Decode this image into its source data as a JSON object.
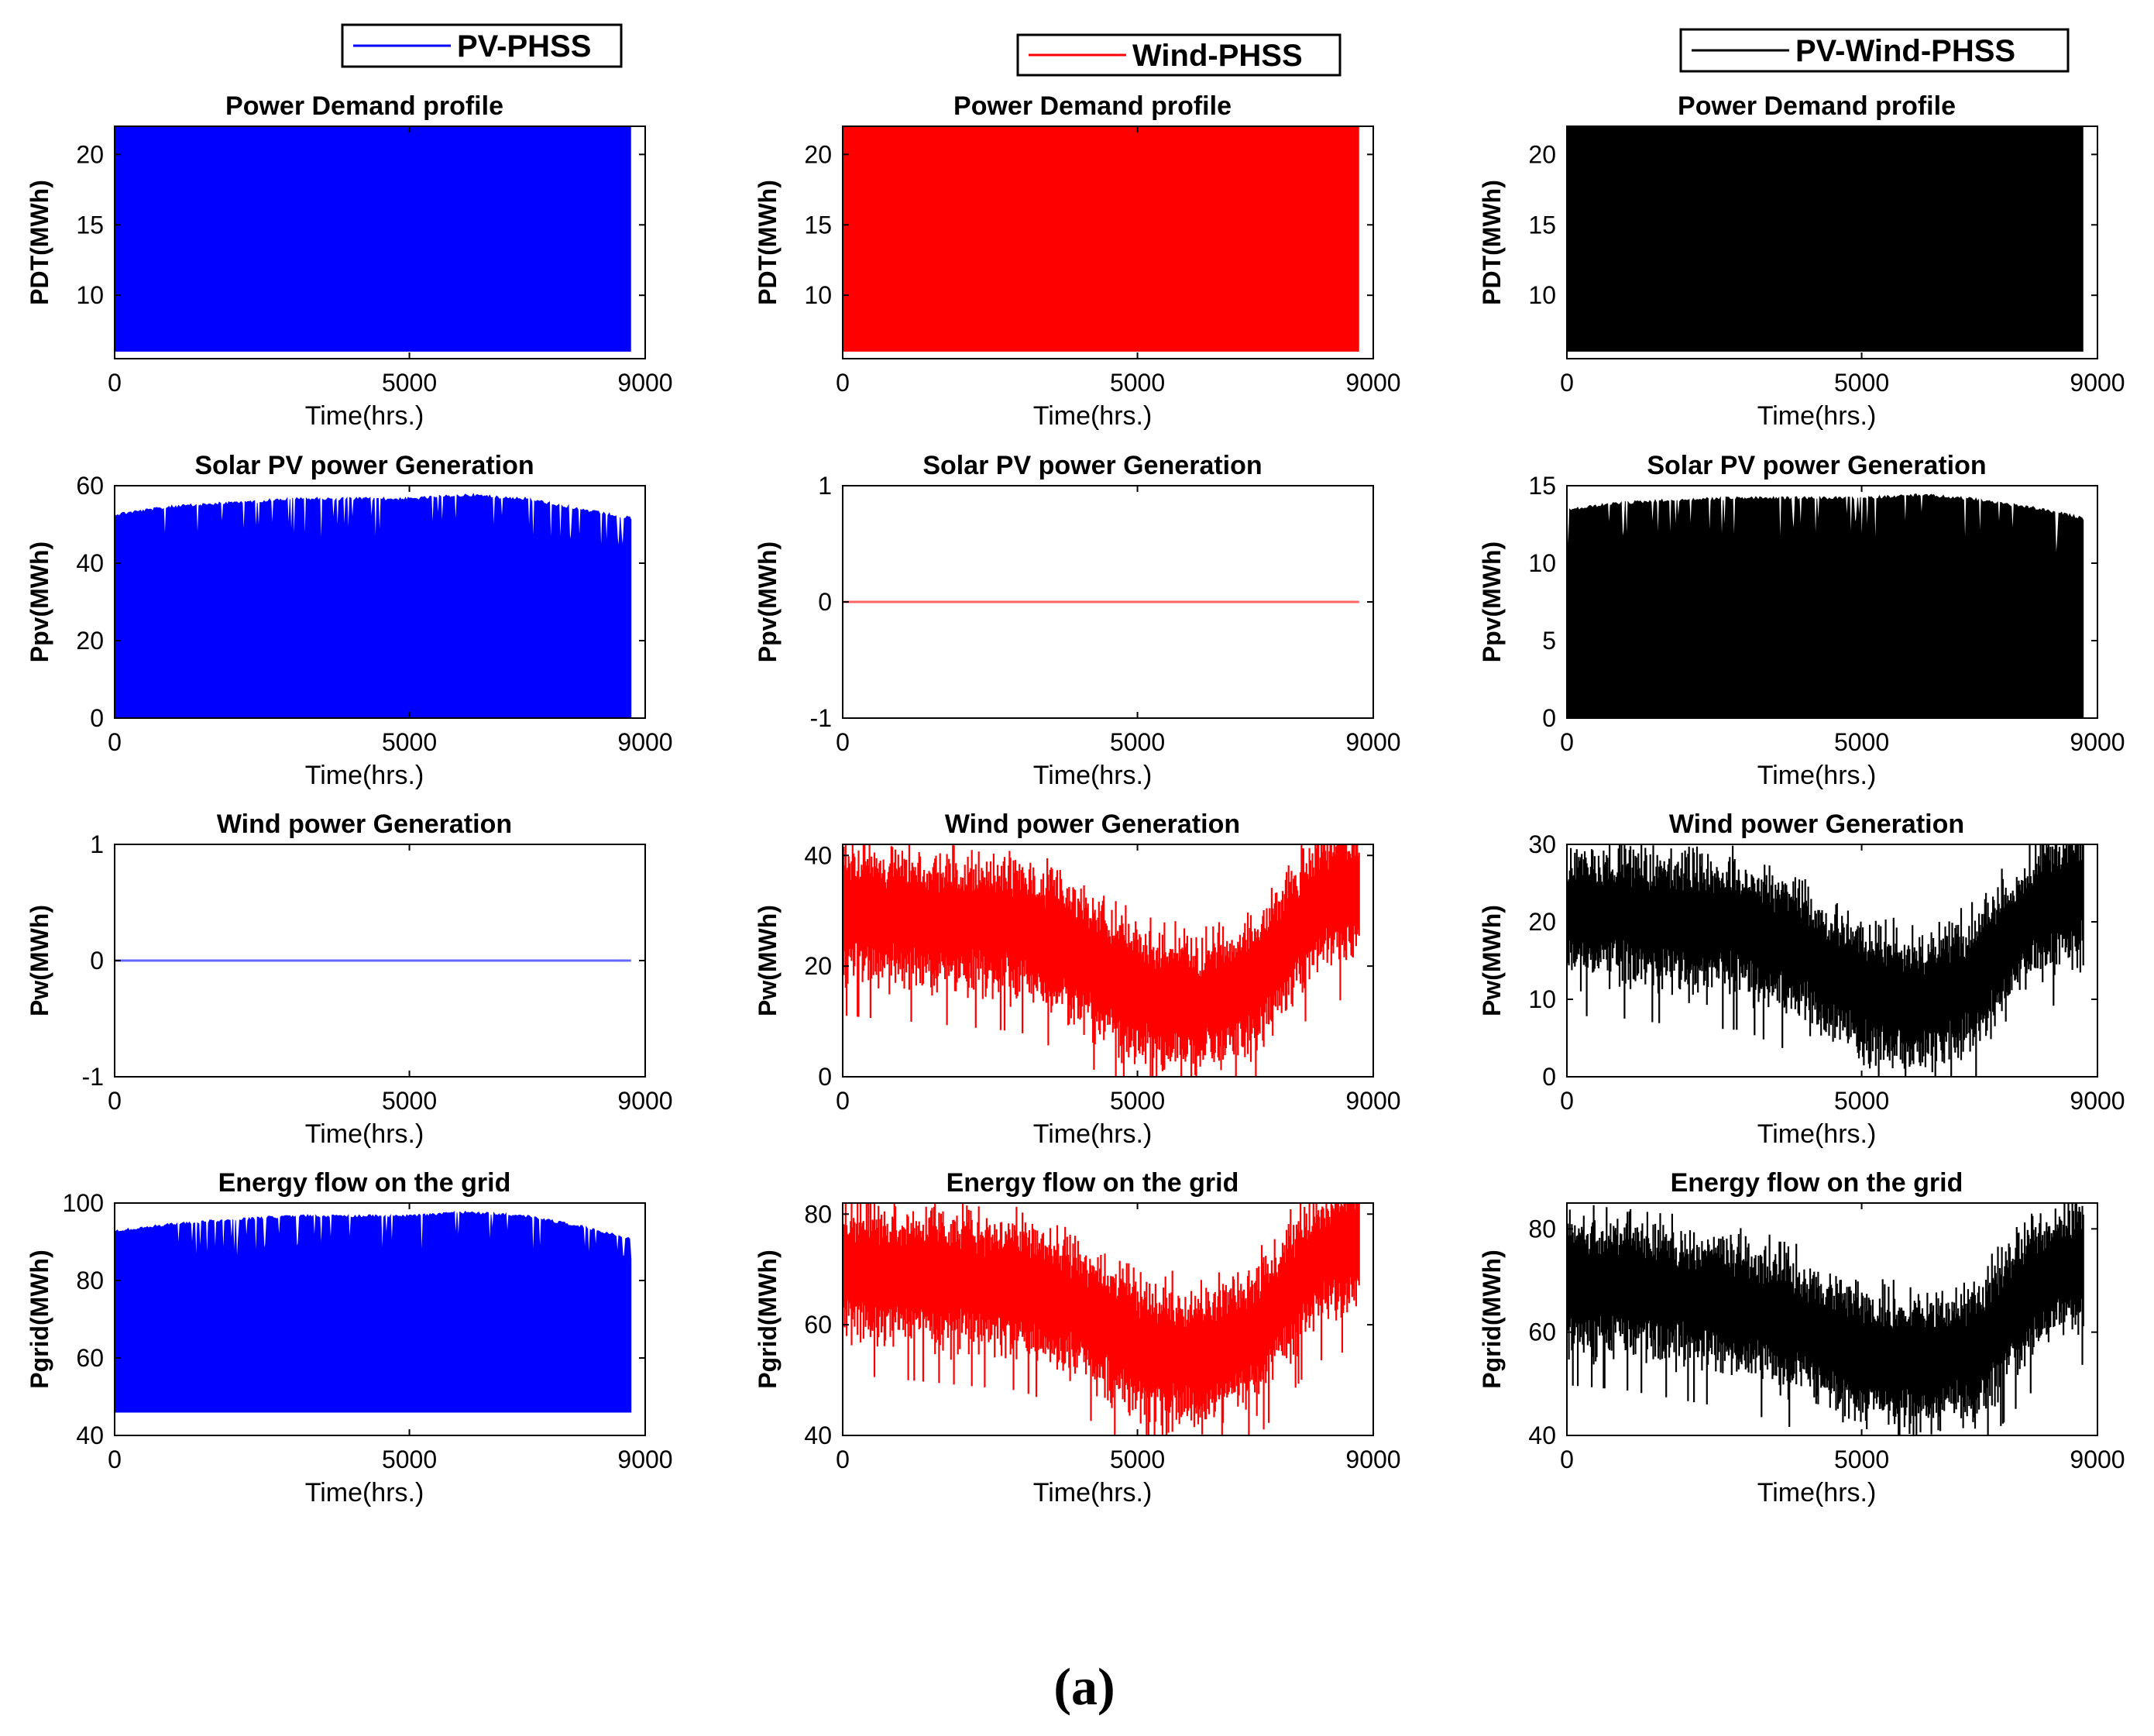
{
  "figure_caption": "(a)",
  "colors": {
    "pv_phss": "#0000ff",
    "wind_phss": "#ff0000",
    "pv_wind_phss": "#000000"
  },
  "legends": [
    {
      "label": "PV-PHSS",
      "color": "#0000ff"
    },
    {
      "label": "Wind-PHSS",
      "color": "#ff0000"
    },
    {
      "label": "PV-Wind-PHSS",
      "color": "#000000"
    }
  ],
  "chart_data": [
    {
      "type": "line",
      "series_name": "PV-PHSS",
      "color": "#0000ff",
      "title": "Power Demand profile",
      "xlabel": "Time(hrs.)",
      "ylabel": "PDT(MWh)",
      "xlim": [
        0,
        9000
      ],
      "ylim": [
        5.5,
        22
      ],
      "xticks": [
        0,
        5000,
        9000
      ],
      "yticks": [
        10,
        15,
        20
      ],
      "x_end": 8760,
      "pattern": "dense band filling range 6–22 MWh (hourly demand oscillation)"
    },
    {
      "type": "line",
      "series_name": "Wind-PHSS",
      "color": "#ff0000",
      "title": "Power Demand profile",
      "xlabel": "Time(hrs.)",
      "ylabel": "PDT(MWh)",
      "xlim": [
        0,
        9000
      ],
      "ylim": [
        5.5,
        22
      ],
      "xticks": [
        0,
        5000,
        9000
      ],
      "yticks": [
        10,
        15,
        20
      ],
      "x_end": 8760,
      "pattern": "dense band filling range 6–22 MWh (hourly demand oscillation)"
    },
    {
      "type": "line",
      "series_name": "PV-Wind-PHSS",
      "color": "#000000",
      "title": "Power Demand profile",
      "xlabel": "Time(hrs.)",
      "ylabel": "PDT(MWh)",
      "xlim": [
        0,
        9000
      ],
      "ylim": [
        5.5,
        22
      ],
      "xticks": [
        0,
        5000,
        9000
      ],
      "yticks": [
        10,
        15,
        20
      ],
      "x_end": 8760,
      "pattern": "dense band filling range 6–22 MWh (hourly demand oscillation)"
    },
    {
      "type": "line",
      "series_name": "PV-PHSS",
      "color": "#0000ff",
      "title": "Solar PV power Generation",
      "xlabel": "Time(hrs.)",
      "ylabel": "Ppv(MWh)",
      "xlim": [
        0,
        9000
      ],
      "ylim": [
        0,
        60
      ],
      "xticks": [
        0,
        5000,
        9000
      ],
      "yticks": [
        0,
        20,
        40,
        60
      ],
      "x_end": 8760,
      "pattern": "daily cycle from 0 up to a seasonal peak envelope",
      "envelope_x": [
        0,
        500,
        1000,
        2000,
        3000,
        4000,
        5000,
        6000,
        7000,
        8000,
        8760
      ],
      "envelope_y": [
        53,
        54,
        55,
        56,
        57,
        57,
        57,
        58,
        57,
        54,
        52
      ]
    },
    {
      "type": "line",
      "series_name": "Wind-PHSS",
      "color": "#ff0000",
      "title": "Solar PV power Generation",
      "xlabel": "Time(hrs.)",
      "ylabel": "Ppv(MWh)",
      "xlim": [
        0,
        9000
      ],
      "ylim": [
        -1,
        1
      ],
      "xticks": [
        0,
        5000,
        9000
      ],
      "yticks": [
        -1,
        0,
        1
      ],
      "x_end": 8760,
      "pattern": "constant zero",
      "x": [
        0,
        8760
      ],
      "y": [
        0,
        0
      ]
    },
    {
      "type": "line",
      "series_name": "PV-Wind-PHSS",
      "color": "#000000",
      "title": "Solar PV power Generation",
      "xlabel": "Time(hrs.)",
      "ylabel": "Ppv(MWh)",
      "xlim": [
        0,
        9000
      ],
      "ylim": [
        0,
        15
      ],
      "xticks": [
        0,
        5000,
        9000
      ],
      "yticks": [
        0,
        5,
        10,
        15
      ],
      "x_end": 8760,
      "pattern": "daily cycle from 0 up to a seasonal peak envelope",
      "envelope_x": [
        0,
        500,
        1000,
        2000,
        3000,
        4000,
        5000,
        6000,
        7000,
        8000,
        8760
      ],
      "envelope_y": [
        13.5,
        13.8,
        14,
        14.2,
        14.3,
        14.3,
        14.3,
        14.5,
        14.2,
        13.6,
        13
      ]
    },
    {
      "type": "line",
      "series_name": "PV-PHSS",
      "color": "#0000ff",
      "title": "Wind power Generation",
      "xlabel": "Time(hrs.)",
      "ylabel": "Pw(MWh)",
      "xlim": [
        0,
        9000
      ],
      "ylim": [
        -1,
        1
      ],
      "xticks": [
        0,
        5000,
        9000
      ],
      "yticks": [
        -1,
        0,
        1
      ],
      "x_end": 8760,
      "pattern": "constant zero",
      "x": [
        0,
        8760
      ],
      "y": [
        0,
        0
      ]
    },
    {
      "type": "line",
      "series_name": "Wind-PHSS",
      "color": "#ff0000",
      "title": "Wind power Generation",
      "xlabel": "Time(hrs.)",
      "ylabel": "Pw(MWh)",
      "xlim": [
        0,
        9000
      ],
      "ylim": [
        0,
        42
      ],
      "xticks": [
        0,
        5000,
        9000
      ],
      "yticks": [
        0,
        20,
        40
      ],
      "x_end": 8760,
      "pattern": "noisy series with seasonal dip mid-year",
      "trend_x": [
        0,
        1000,
        2000,
        3000,
        4000,
        5000,
        6000,
        7000,
        7500,
        8000,
        8760
      ],
      "trend_y": [
        30,
        29,
        28,
        27,
        22,
        15,
        13,
        17,
        24,
        31,
        34
      ]
    },
    {
      "type": "line",
      "series_name": "PV-Wind-PHSS",
      "color": "#000000",
      "title": "Wind power Generation",
      "xlabel": "Time(hrs.)",
      "ylabel": "Pw(MWh)",
      "xlim": [
        0,
        9000
      ],
      "ylim": [
        0,
        30
      ],
      "xticks": [
        0,
        5000,
        9000
      ],
      "yticks": [
        0,
        10,
        20,
        30
      ],
      "x_end": 8760,
      "pattern": "noisy series with seasonal dip mid-year",
      "trend_x": [
        0,
        1000,
        2000,
        3000,
        4000,
        5000,
        6000,
        7000,
        7500,
        8000,
        8760
      ],
      "trend_y": [
        21.5,
        21,
        20,
        19.5,
        16,
        11,
        9.5,
        12.5,
        17.5,
        22,
        24
      ]
    },
    {
      "type": "line",
      "series_name": "PV-PHSS",
      "color": "#0000ff",
      "title": "Energy flow on the grid",
      "xlabel": "Time(hrs.)",
      "ylabel": "Pgrid(MWh)",
      "xlim": [
        0,
        9000
      ],
      "ylim": [
        40,
        100
      ],
      "xticks": [
        0,
        5000,
        9000
      ],
      "yticks": [
        40,
        60,
        80,
        100
      ],
      "x_end": 8760,
      "pattern": "daily cycle from ~46 up to a seasonal peak envelope",
      "floor": 46,
      "envelope_x": [
        0,
        500,
        1000,
        2000,
        3000,
        4000,
        5000,
        6000,
        7000,
        8000,
        8760
      ],
      "envelope_y": [
        93,
        94,
        95,
        96,
        97,
        97,
        97,
        98,
        97,
        94,
        91
      ]
    },
    {
      "type": "line",
      "series_name": "Wind-PHSS",
      "color": "#ff0000",
      "title": "Energy flow on the grid",
      "xlabel": "Time(hrs.)",
      "ylabel": "Pgrid(MWh)",
      "xlim": [
        0,
        9000
      ],
      "ylim": [
        40,
        82
      ],
      "xticks": [
        0,
        5000,
        9000
      ],
      "yticks": [
        40,
        60,
        80
      ],
      "x_end": 8760,
      "pattern": "noisy series with seasonal dip mid-year",
      "trend_x": [
        0,
        1000,
        2000,
        3000,
        4000,
        5000,
        6000,
        7000,
        7500,
        8000,
        8760
      ],
      "trend_y": [
        70,
        69,
        68,
        67,
        63,
        56,
        54,
        58,
        65,
        72,
        75
      ]
    },
    {
      "type": "line",
      "series_name": "PV-Wind-PHSS",
      "color": "#000000",
      "title": "Energy flow on the grid",
      "xlabel": "Time(hrs.)",
      "ylabel": "Pgrid(MWh)",
      "xlim": [
        0,
        9000
      ],
      "ylim": [
        40,
        85
      ],
      "xticks": [
        0,
        5000,
        9000
      ],
      "yticks": [
        40,
        60,
        80
      ],
      "x_end": 8760,
      "pattern": "noisy series with seasonal dip mid-year",
      "trend_x": [
        0,
        1000,
        2000,
        3000,
        4000,
        5000,
        6000,
        7000,
        7500,
        8000,
        8760
      ],
      "trend_y": [
        70,
        69,
        67,
        65,
        61,
        56,
        54,
        57,
        64,
        70,
        74
      ]
    }
  ]
}
